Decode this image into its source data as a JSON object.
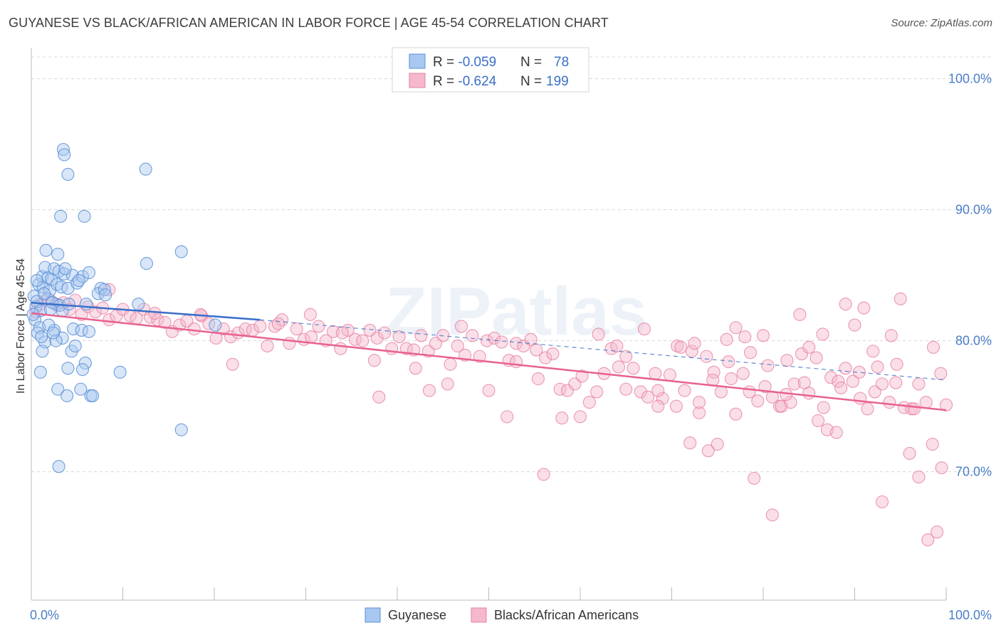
{
  "title": "GUYANESE VS BLACK/AFRICAN AMERICAN IN LABOR FORCE | AGE 45-54 CORRELATION CHART",
  "source": "Source: ZipAtlas.com",
  "watermark": "ZIPatlas",
  "legend_box": {
    "rows": [
      {
        "r_label": "R = ",
        "r_value": "-0.059",
        "n_label": "N = ",
        "n_value": "78",
        "color": "#a8c8f0"
      },
      {
        "r_label": "R = ",
        "r_value": "-0.624",
        "n_label": "N = ",
        "n_value": "199",
        "color": "#f5b8cc"
      }
    ]
  },
  "bottom_legend": [
    {
      "label": "Guyanese",
      "color": "#a8c8f0"
    },
    {
      "label": "Blacks/African Americans",
      "color": "#f5b8cc"
    }
  ],
  "colors": {
    "guyanese_fill": "#a8c8f0",
    "guyanese_stroke": "#5b8fd6",
    "guyanese_line": "#3a6fc9",
    "black_fill": "#f5b8cc",
    "black_stroke": "#e77fa2",
    "black_line": "#e8628f",
    "tick_label": "#4a7ec9",
    "grid": "#d8d8d8"
  },
  "chart_data": {
    "type": "scatter",
    "title": "GUYANESE VS BLACK/AFRICAN AMERICAN IN LABOR FORCE | AGE 45-54 CORRELATION CHART",
    "xlabel": "",
    "ylabel": "In Labor Force | Age 45-54",
    "xlim": [
      0,
      100
    ],
    "ylim": [
      60.2,
      102.1
    ],
    "x_tick_labels": [
      "0.0%",
      "100.0%"
    ],
    "y_ticks": [
      70,
      80,
      90,
      100
    ],
    "y_tick_labels": [
      "70.0%",
      "80.0%",
      "90.0%",
      "100.0%"
    ],
    "grid": "horizontal dashed",
    "legend_position": "top-center",
    "series": [
      {
        "name": "Guyanese",
        "R": -0.059,
        "N": 78,
        "trend": {
          "x": [
            0,
            25
          ],
          "y": [
            82.9,
            81.6
          ],
          "dashed_extension_to": [
            100,
            77.0
          ]
        },
        "points": [
          [
            0.3,
            83.4
          ],
          [
            0.5,
            82.6
          ],
          [
            0.8,
            84.3
          ],
          [
            0.4,
            81.6
          ],
          [
            0.6,
            83.0
          ],
          [
            1.0,
            82.3
          ],
          [
            1.2,
            84.9
          ],
          [
            1.5,
            85.6
          ],
          [
            1.3,
            84.1
          ],
          [
            0.9,
            81.0
          ],
          [
            1.8,
            84.8
          ],
          [
            2.0,
            83.8
          ],
          [
            2.2,
            84.7
          ],
          [
            2.5,
            85.5
          ],
          [
            2.7,
            82.8
          ],
          [
            3.0,
            85.3
          ],
          [
            2.8,
            84.3
          ],
          [
            3.3,
            84.1
          ],
          [
            3.6,
            85.1
          ],
          [
            4.0,
            84.0
          ],
          [
            4.5,
            85.0
          ],
          [
            5.0,
            84.4
          ],
          [
            5.6,
            84.9
          ],
          [
            6.3,
            85.2
          ],
          [
            1.6,
            86.9
          ],
          [
            2.9,
            86.6
          ],
          [
            7.6,
            84.0
          ],
          [
            3.5,
            94.6
          ],
          [
            3.6,
            94.2
          ],
          [
            4.0,
            92.7
          ],
          [
            3.2,
            89.5
          ],
          [
            5.8,
            89.5
          ],
          [
            12.5,
            93.1
          ],
          [
            12.6,
            85.9
          ],
          [
            16.4,
            86.8
          ],
          [
            11.7,
            82.8
          ],
          [
            7.3,
            83.6
          ],
          [
            8.0,
            83.9
          ],
          [
            8.1,
            83.5
          ],
          [
            1.8,
            83.2
          ],
          [
            2.3,
            82.9
          ],
          [
            3.1,
            82.7
          ],
          [
            3.4,
            82.3
          ],
          [
            4.1,
            82.8
          ],
          [
            6.0,
            82.8
          ],
          [
            0.7,
            80.6
          ],
          [
            1.5,
            79.9
          ],
          [
            1.2,
            79.2
          ],
          [
            2.5,
            80.8
          ],
          [
            3.4,
            80.2
          ],
          [
            4.6,
            80.9
          ],
          [
            5.5,
            80.8
          ],
          [
            6.3,
            80.7
          ],
          [
            1.9,
            81.2
          ],
          [
            2.7,
            80.0
          ],
          [
            4.4,
            79.2
          ],
          [
            4.8,
            79.6
          ],
          [
            5.9,
            78.3
          ],
          [
            5.6,
            77.8
          ],
          [
            4.0,
            77.9
          ],
          [
            1.0,
            77.6
          ],
          [
            9.7,
            77.6
          ],
          [
            5.4,
            76.3
          ],
          [
            2.9,
            76.3
          ],
          [
            3.9,
            75.8
          ],
          [
            6.5,
            75.8
          ],
          [
            6.7,
            75.8
          ],
          [
            16.4,
            73.2
          ],
          [
            3.0,
            70.4
          ],
          [
            20.1,
            81.2
          ],
          [
            0.2,
            82.0
          ],
          [
            0.6,
            84.6
          ],
          [
            1.4,
            83.6
          ],
          [
            2.1,
            82.4
          ],
          [
            3.7,
            85.5
          ],
          [
            5.2,
            84.6
          ],
          [
            2.4,
            80.6
          ],
          [
            1.1,
            80.3
          ]
        ]
      },
      {
        "name": "Blacks/African Americans",
        "R": -0.624,
        "N": 199,
        "trend": {
          "x": [
            0,
            100
          ],
          "y": [
            82.1,
            74.7
          ]
        },
        "points": [
          [
            0.5,
            82.2
          ],
          [
            1.0,
            82.8
          ],
          [
            1.6,
            83.1
          ],
          [
            2.2,
            83.0
          ],
          [
            2.8,
            82.7
          ],
          [
            3.5,
            82.9
          ],
          [
            4.2,
            82.4
          ],
          [
            4.8,
            83.1
          ],
          [
            5.5,
            82.0
          ],
          [
            6.2,
            82.6
          ],
          [
            7.0,
            82.2
          ],
          [
            7.8,
            82.5
          ],
          [
            8.5,
            81.6
          ],
          [
            9.3,
            81.9
          ],
          [
            10.0,
            82.4
          ],
          [
            10.8,
            81.9
          ],
          [
            11.5,
            81.7
          ],
          [
            12.3,
            82.4
          ],
          [
            13.0,
            81.8
          ],
          [
            13.8,
            81.6
          ],
          [
            14.6,
            81.4
          ],
          [
            15.4,
            80.7
          ],
          [
            16.2,
            81.2
          ],
          [
            17.0,
            81.5
          ],
          [
            17.8,
            80.9
          ],
          [
            18.6,
            81.9
          ],
          [
            19.4,
            81.3
          ],
          [
            20.2,
            80.2
          ],
          [
            21.0,
            80.9
          ],
          [
            21.8,
            80.3
          ],
          [
            22.6,
            80.6
          ],
          [
            23.4,
            80.9
          ],
          [
            24.2,
            80.8
          ],
          [
            25.0,
            81.1
          ],
          [
            25.8,
            79.6
          ],
          [
            26.6,
            81.1
          ],
          [
            27.4,
            81.6
          ],
          [
            28.2,
            79.8
          ],
          [
            29.0,
            80.9
          ],
          [
            29.8,
            80.1
          ],
          [
            30.6,
            80.3
          ],
          [
            31.4,
            81.1
          ],
          [
            32.2,
            80.0
          ],
          [
            33.0,
            80.7
          ],
          [
            33.8,
            79.4
          ],
          [
            34.6,
            80.8
          ],
          [
            35.4,
            80.1
          ],
          [
            36.2,
            80.0
          ],
          [
            37.0,
            80.8
          ],
          [
            37.8,
            80.2
          ],
          [
            38.6,
            80.6
          ],
          [
            39.4,
            79.4
          ],
          [
            40.2,
            80.3
          ],
          [
            41.0,
            79.4
          ],
          [
            41.8,
            79.3
          ],
          [
            42.6,
            80.4
          ],
          [
            43.4,
            79.2
          ],
          [
            44.2,
            79.8
          ],
          [
            45.0,
            80.4
          ],
          [
            45.8,
            78.2
          ],
          [
            46.6,
            79.6
          ],
          [
            47.4,
            78.9
          ],
          [
            48.2,
            80.4
          ],
          [
            49.0,
            78.8
          ],
          [
            49.8,
            80.0
          ],
          [
            50.6,
            80.2
          ],
          [
            51.4,
            79.9
          ],
          [
            52.2,
            78.5
          ],
          [
            53.0,
            79.8
          ],
          [
            53.8,
            79.6
          ],
          [
            54.6,
            80.1
          ],
          [
            55.4,
            77.1
          ],
          [
            56.2,
            78.7
          ],
          [
            57.0,
            79.0
          ],
          [
            57.8,
            76.3
          ],
          [
            58.6,
            76.2
          ],
          [
            59.4,
            76.7
          ],
          [
            60.2,
            77.3
          ],
          [
            61.0,
            75.3
          ],
          [
            61.8,
            76.1
          ],
          [
            62.6,
            77.5
          ],
          [
            63.4,
            79.4
          ],
          [
            64.2,
            78.0
          ],
          [
            65.0,
            78.8
          ],
          [
            65.8,
            77.9
          ],
          [
            66.6,
            76.1
          ],
          [
            67.4,
            75.7
          ],
          [
            68.2,
            77.5
          ],
          [
            69.0,
            75.6
          ],
          [
            69.8,
            77.4
          ],
          [
            70.6,
            79.6
          ],
          [
            71.4,
            76.2
          ],
          [
            72.2,
            79.2
          ],
          [
            73.0,
            74.5
          ],
          [
            73.8,
            78.8
          ],
          [
            74.6,
            77.6
          ],
          [
            75.4,
            76.1
          ],
          [
            76.2,
            78.4
          ],
          [
            77.0,
            74.4
          ],
          [
            77.8,
            77.5
          ],
          [
            78.6,
            79.1
          ],
          [
            79.4,
            75.4
          ],
          [
            80.2,
            76.5
          ],
          [
            81.0,
            75.7
          ],
          [
            81.8,
            75.0
          ],
          [
            82.6,
            78.5
          ],
          [
            83.4,
            76.7
          ],
          [
            84.2,
            79.0
          ],
          [
            85.0,
            76.0
          ],
          [
            85.8,
            78.7
          ],
          [
            86.6,
            74.9
          ],
          [
            87.4,
            77.2
          ],
          [
            88.2,
            76.9
          ],
          [
            89.0,
            77.9
          ],
          [
            89.8,
            76.9
          ],
          [
            90.6,
            75.6
          ],
          [
            91.4,
            74.8
          ],
          [
            92.2,
            76.1
          ],
          [
            93.0,
            76.7
          ],
          [
            93.8,
            75.3
          ],
          [
            94.6,
            78.2
          ],
          [
            95.4,
            74.9
          ],
          [
            96.2,
            74.8
          ],
          [
            97.0,
            76.7
          ],
          [
            97.8,
            75.3
          ],
          [
            98.6,
            79.5
          ],
          [
            99.4,
            77.5
          ],
          [
            8.5,
            83.9
          ],
          [
            13.5,
            82.1
          ],
          [
            18.5,
            82.0
          ],
          [
            22.0,
            78.2
          ],
          [
            27.0,
            81.3
          ],
          [
            30.5,
            82.0
          ],
          [
            34.0,
            80.6
          ],
          [
            37.5,
            78.5
          ],
          [
            38.0,
            75.7
          ],
          [
            42.0,
            77.9
          ],
          [
            43.5,
            76.2
          ],
          [
            45.5,
            76.7
          ],
          [
            47.0,
            81.1
          ],
          [
            50.0,
            76.2
          ],
          [
            52.0,
            74.2
          ],
          [
            53.0,
            78.4
          ],
          [
            55.2,
            79.3
          ],
          [
            56.0,
            69.8
          ],
          [
            58.0,
            74.1
          ],
          [
            60.0,
            74.2
          ],
          [
            62.0,
            80.5
          ],
          [
            64.0,
            79.6
          ],
          [
            65.0,
            76.3
          ],
          [
            67.0,
            80.9
          ],
          [
            68.5,
            75.0
          ],
          [
            71.0,
            79.5
          ],
          [
            72.0,
            72.2
          ],
          [
            73.0,
            75.3
          ],
          [
            74.0,
            71.6
          ],
          [
            75.0,
            72.1
          ],
          [
            76.0,
            80.1
          ],
          [
            77.0,
            81.0
          ],
          [
            78.0,
            80.3
          ],
          [
            79.0,
            69.5
          ],
          [
            80.0,
            80.4
          ],
          [
            81.0,
            66.7
          ],
          [
            82.0,
            75.0
          ],
          [
            83.0,
            75.3
          ],
          [
            84.0,
            82.0
          ],
          [
            85.0,
            79.5
          ],
          [
            86.0,
            73.9
          ],
          [
            87.0,
            73.2
          ],
          [
            88.0,
            73.0
          ],
          [
            89.0,
            82.8
          ],
          [
            90.0,
            81.2
          ],
          [
            91.0,
            82.5
          ],
          [
            92.0,
            79.2
          ],
          [
            93.0,
            67.7
          ],
          [
            94.0,
            80.4
          ],
          [
            95.0,
            83.2
          ],
          [
            96.0,
            71.4
          ],
          [
            97.0,
            69.6
          ],
          [
            98.0,
            64.8
          ],
          [
            99.0,
            65.4
          ],
          [
            100.0,
            75.1
          ],
          [
            99.5,
            70.3
          ],
          [
            98.5,
            72.1
          ],
          [
            96.5,
            74.8
          ],
          [
            94.5,
            76.8
          ],
          [
            92.5,
            78.0
          ],
          [
            90.5,
            77.6
          ],
          [
            88.5,
            76.4
          ],
          [
            86.5,
            80.5
          ],
          [
            84.5,
            76.8
          ],
          [
            82.5,
            75.9
          ],
          [
            80.5,
            78.1
          ],
          [
            78.5,
            76.1
          ],
          [
            76.5,
            77.1
          ],
          [
            74.5,
            77.0
          ],
          [
            72.5,
            79.8
          ],
          [
            70.5,
            75.0
          ],
          [
            68.5,
            76.2
          ]
        ]
      }
    ]
  }
}
